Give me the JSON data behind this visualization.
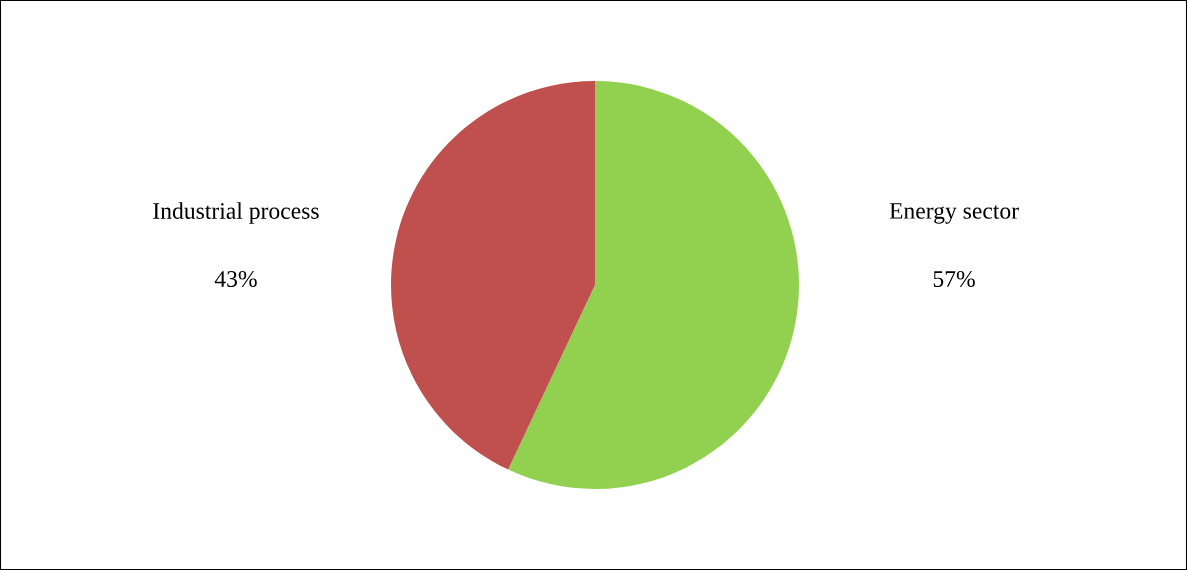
{
  "chart_data": {
    "type": "pie",
    "categories": [
      "Energy sector",
      "Industrial process"
    ],
    "values": [
      57,
      43
    ],
    "colors": [
      "#92d050",
      "#c0504d"
    ],
    "value_labels": [
      "57%",
      "43%"
    ]
  }
}
